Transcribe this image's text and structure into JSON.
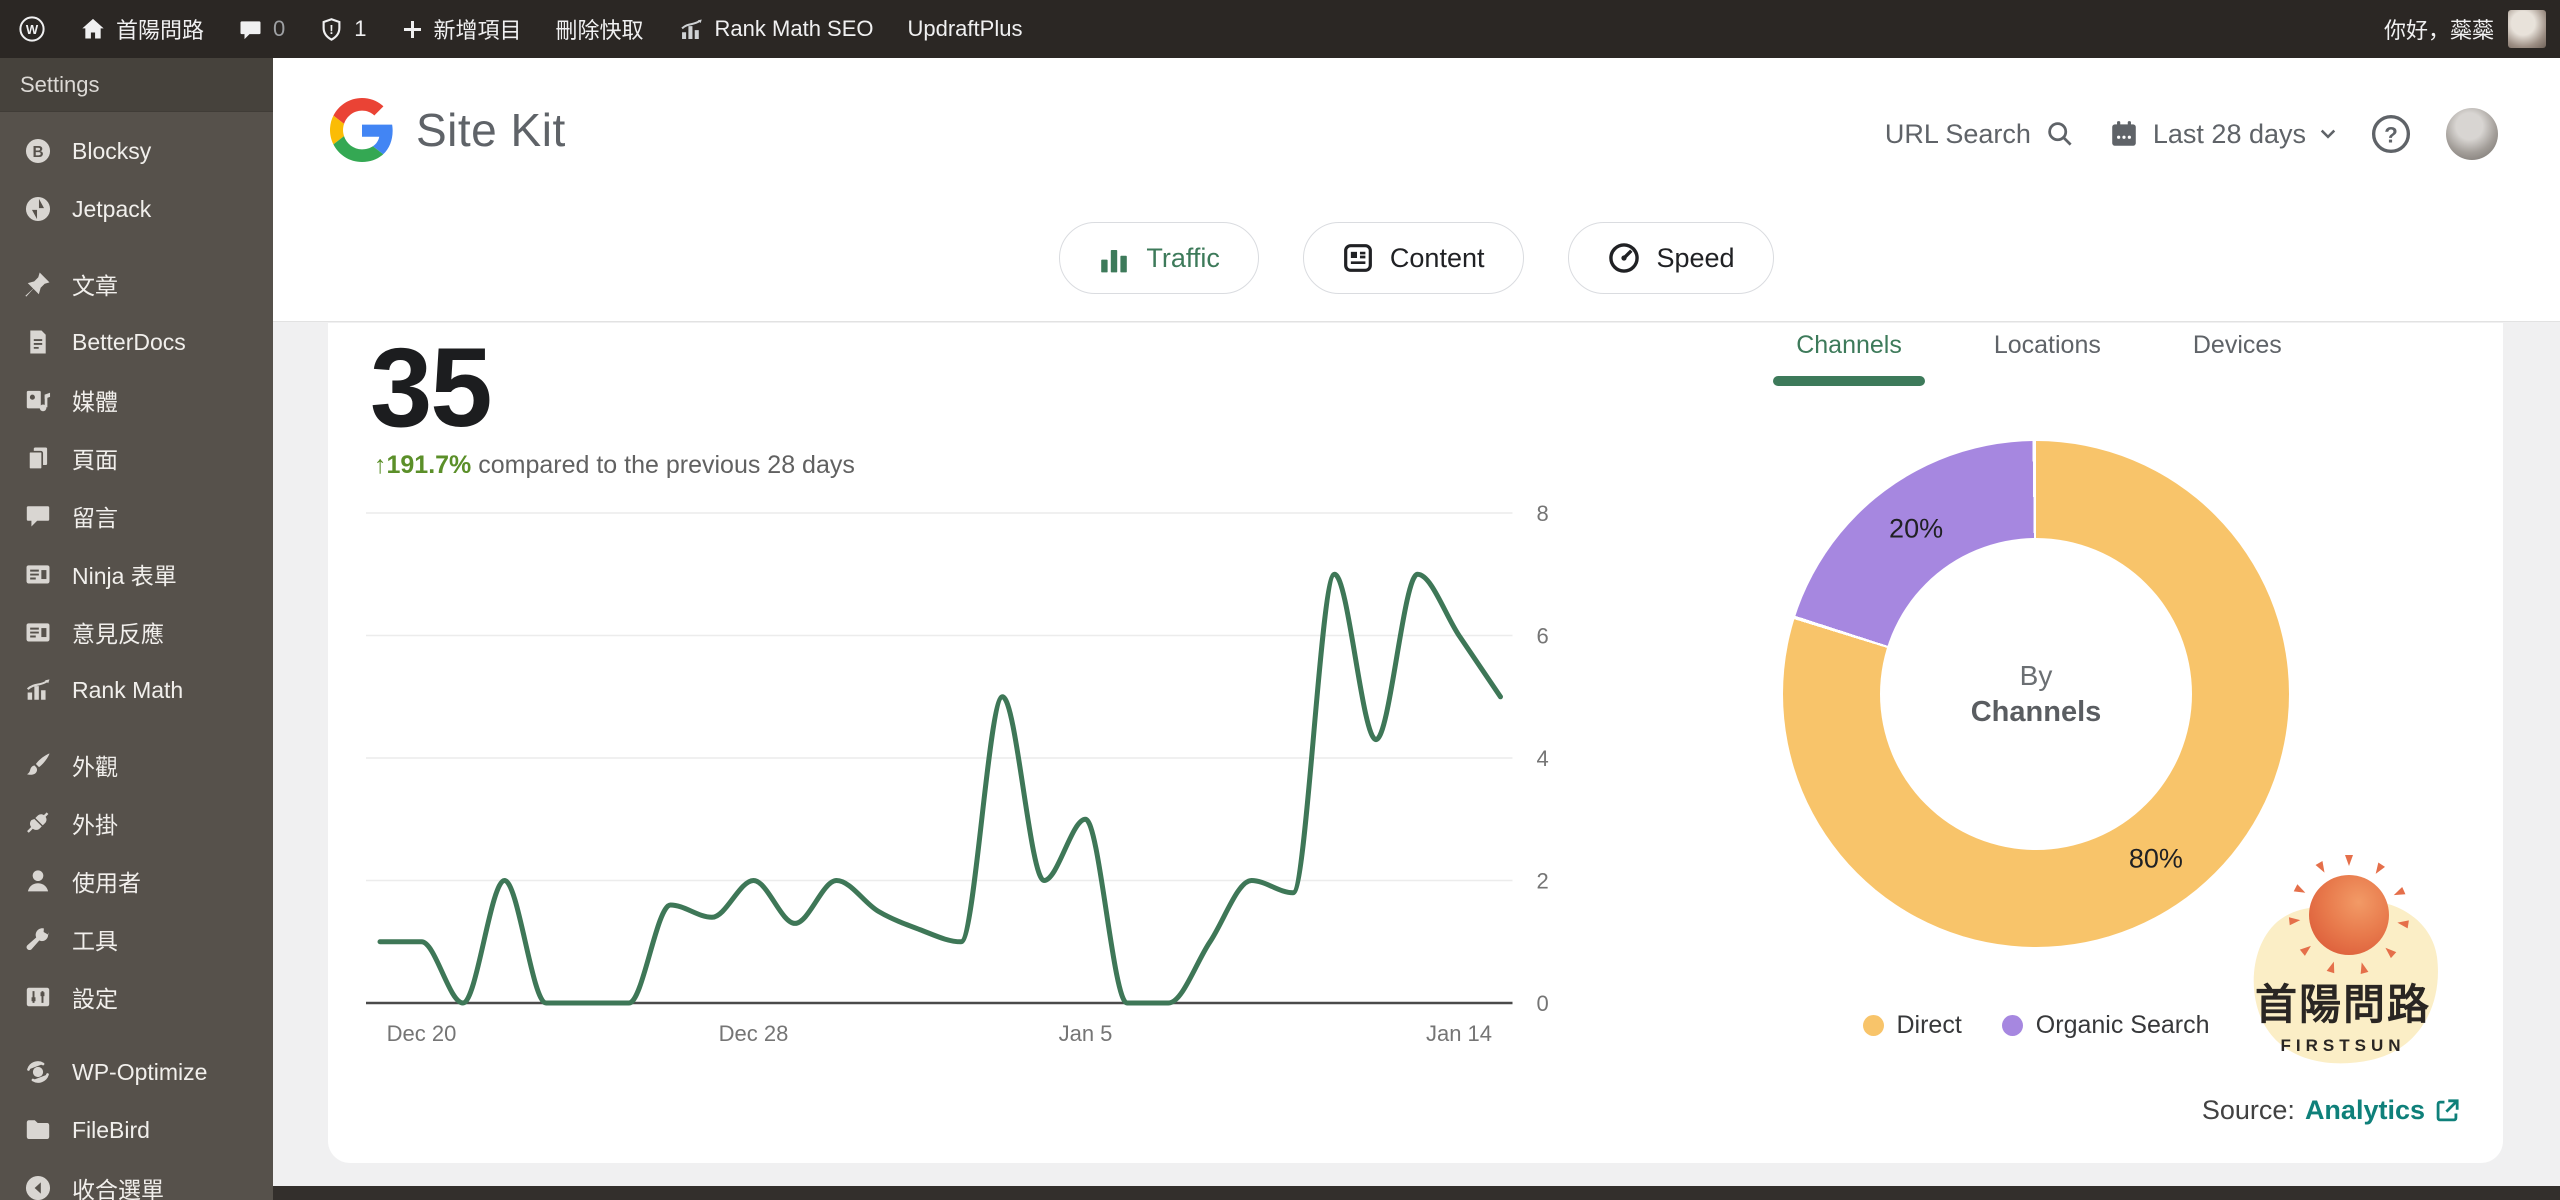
{
  "admin_bar": {
    "wp_logo_letter": "W",
    "site_name": "首陽問路",
    "comments_count": "0",
    "alerts_count": "1",
    "new_item_label": "新增項目",
    "clear_cache_label": "刪除快取",
    "rank_math_label": "Rank Math SEO",
    "updraft_label": "UpdraftPlus",
    "greeting": "你好，蘂蘂"
  },
  "sidebar": {
    "settings_label": "Settings",
    "items": [
      {
        "id": "blocksy",
        "label": "Blocksy"
      },
      {
        "id": "jetpack",
        "label": "Jetpack"
      },
      {
        "id": "posts",
        "label": "文章"
      },
      {
        "id": "betterdocs",
        "label": "BetterDocs"
      },
      {
        "id": "media",
        "label": "媒體"
      },
      {
        "id": "pages",
        "label": "頁面"
      },
      {
        "id": "comments",
        "label": "留言"
      },
      {
        "id": "ninja-forms",
        "label": "Ninja 表單"
      },
      {
        "id": "feedback",
        "label": "意見反應"
      },
      {
        "id": "rank-math",
        "label": "Rank Math"
      },
      {
        "id": "appearance",
        "label": "外觀"
      },
      {
        "id": "plugins",
        "label": "外掛"
      },
      {
        "id": "users",
        "label": "使用者"
      },
      {
        "id": "tools",
        "label": "工具"
      },
      {
        "id": "settings",
        "label": "設定"
      },
      {
        "id": "wp-optimize",
        "label": "WP-Optimize"
      },
      {
        "id": "filebird",
        "label": "FileBird"
      },
      {
        "id": "collapse",
        "label": "收合選單"
      }
    ]
  },
  "header": {
    "product_name": "Site Kit",
    "url_search_label": "URL Search",
    "date_range_label": "Last 28 days",
    "tabs": [
      {
        "label": "Traffic",
        "active": true
      },
      {
        "label": "Content",
        "active": false
      },
      {
        "label": "Speed",
        "active": false
      }
    ]
  },
  "metric": {
    "value": "35",
    "trend_arrow": "↑",
    "change": "191.7%",
    "compare_text": "compared to the previous 28 days"
  },
  "right_panel": {
    "tabs": [
      {
        "label": "Channels",
        "active": true
      },
      {
        "label": "Locations",
        "active": false
      },
      {
        "label": "Devices",
        "active": false
      }
    ],
    "center_line1": "By",
    "center_line2": "Channels",
    "source_label": "Source:",
    "source_link": "Analytics"
  },
  "watermark": {
    "title": "首陽問路",
    "subtitle": "FIRSTSUN"
  },
  "colors": {
    "accent_green": "#3d7a5a",
    "line_green": "#3e7757",
    "up_green": "#5b8f29",
    "donut_direct": "#f8c46a",
    "donut_organic": "#a687e0",
    "link_teal": "#0f807a",
    "axis_gray": "#757575"
  },
  "chart_data": [
    {
      "type": "line",
      "name": "visitors-over-28-days",
      "num_points": 28,
      "values": [
        1,
        1,
        0,
        2,
        0,
        0,
        0,
        1.6,
        1.4,
        2,
        1.3,
        2,
        1.5,
        1.2,
        1,
        5,
        2,
        3,
        0,
        0,
        1,
        2,
        1.8,
        7,
        4.3,
        7,
        6,
        5
      ],
      "x_tick_indices": [
        1,
        9,
        17,
        26
      ],
      "x_tick_labels": [
        "Dec 20",
        "Dec 28",
        "Jan 5",
        "Jan 14"
      ],
      "yticks": [
        0,
        2,
        4,
        6,
        8
      ],
      "ylim": [
        0,
        8
      ],
      "grid": true,
      "line_color": "#3e7757",
      "legend_position": "none"
    },
    {
      "type": "pie",
      "name": "traffic-by-channels",
      "donut": true,
      "slices": [
        {
          "label": "Direct",
          "value": 80,
          "display": "80%",
          "color": "#f8c46a"
        },
        {
          "label": "Organic Search",
          "value": 20,
          "display": "20%",
          "color": "#a687e0"
        }
      ],
      "center_label": "By Channels",
      "legend_position": "bottom"
    }
  ]
}
